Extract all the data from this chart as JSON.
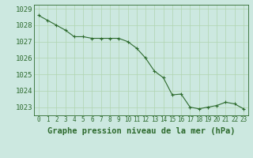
{
  "x": [
    0,
    1,
    2,
    3,
    4,
    5,
    6,
    7,
    8,
    9,
    10,
    11,
    12,
    13,
    14,
    15,
    16,
    17,
    18,
    19,
    20,
    21,
    22,
    23
  ],
  "y": [
    1028.6,
    1028.3,
    1028.0,
    1027.7,
    1027.3,
    1027.3,
    1027.2,
    1027.2,
    1027.2,
    1027.2,
    1027.0,
    1026.6,
    1026.0,
    1025.2,
    1024.8,
    1023.75,
    1023.8,
    1023.0,
    1022.9,
    1023.0,
    1023.1,
    1023.3,
    1023.2,
    1022.9
  ],
  "xlabel": "Graphe pression niveau de la mer (hPa)",
  "ylim": [
    1022.5,
    1029.25
  ],
  "xlim": [
    -0.5,
    23.5
  ],
  "yticks": [
    1023,
    1024,
    1025,
    1026,
    1027,
    1028,
    1029
  ],
  "xticks": [
    0,
    1,
    2,
    3,
    4,
    5,
    6,
    7,
    8,
    9,
    10,
    11,
    12,
    13,
    14,
    15,
    16,
    17,
    18,
    19,
    20,
    21,
    22,
    23
  ],
  "line_color": "#2d6a2d",
  "marker": "+",
  "bg_color": "#cce8e0",
  "grid_color": "#b0d4b0",
  "xlabel_fontsize": 7.5,
  "ytick_fontsize": 6.5,
  "xtick_fontsize": 5.5
}
